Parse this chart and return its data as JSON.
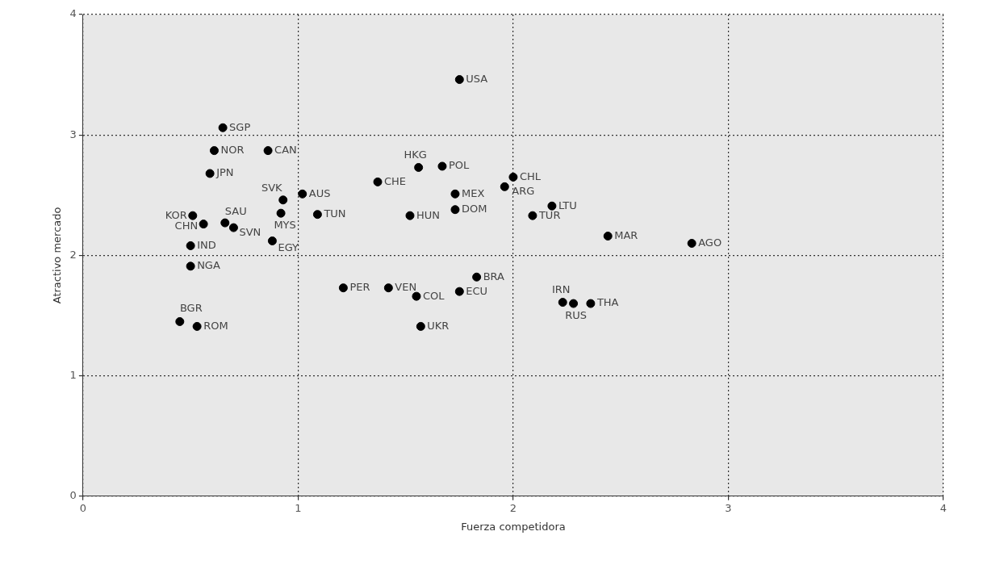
{
  "chart_data": {
    "type": "scatter",
    "xlabel": "Fuerza competidora",
    "ylabel": "Atractivo mercado",
    "xlim": [
      0,
      4
    ],
    "ylim": [
      0,
      4
    ],
    "xticks": [
      0,
      1,
      2,
      3,
      4
    ],
    "yticks": [
      0,
      1,
      2,
      3,
      4
    ],
    "grid": true,
    "marker": "circle",
    "legend": false,
    "series": [
      {
        "color": "#000000",
        "x": [
          1.75,
          0.65,
          0.61,
          0.86,
          0.59,
          1.56,
          1.67,
          1.37,
          2.0,
          1.96,
          0.93,
          1.02,
          1.73,
          2.18,
          0.51,
          0.66,
          0.56,
          0.92,
          1.09,
          1.52,
          1.73,
          2.09,
          0.7,
          0.88,
          2.44,
          2.83,
          0.5,
          0.5,
          1.83,
          1.21,
          1.42,
          1.55,
          1.75,
          2.23,
          2.28,
          2.36,
          0.45,
          0.53,
          1.57
        ],
        "values": [
          3.46,
          3.06,
          2.87,
          2.87,
          2.68,
          2.73,
          2.74,
          2.61,
          2.65,
          2.57,
          2.46,
          2.51,
          2.51,
          2.41,
          2.33,
          2.27,
          2.26,
          2.35,
          2.34,
          2.33,
          2.38,
          2.33,
          2.23,
          2.12,
          2.16,
          2.1,
          2.08,
          1.91,
          1.82,
          1.73,
          1.73,
          1.66,
          1.7,
          1.61,
          1.6,
          1.6,
          1.45,
          1.41,
          1.41
        ],
        "value_labels": [
          "USA",
          "SGP",
          "NOR",
          "CAN",
          "JPN",
          "HKG",
          "POL",
          "CHE",
          "CHL",
          "ARG",
          "SVK",
          "AUS",
          "MEX",
          "LTU",
          "KOR",
          "SAU",
          "CHN",
          "MYS",
          "TUN",
          "HUN",
          "DOM",
          "TUR",
          "SVN",
          "EGY",
          "MAR",
          "AGO",
          "IND",
          "NGA",
          "BRA",
          "PER",
          "VEN",
          "COL",
          "ECU",
          "IRN",
          "RUS",
          "THA",
          "BGR",
          "ROM",
          "UKR"
        ]
      }
    ]
  }
}
